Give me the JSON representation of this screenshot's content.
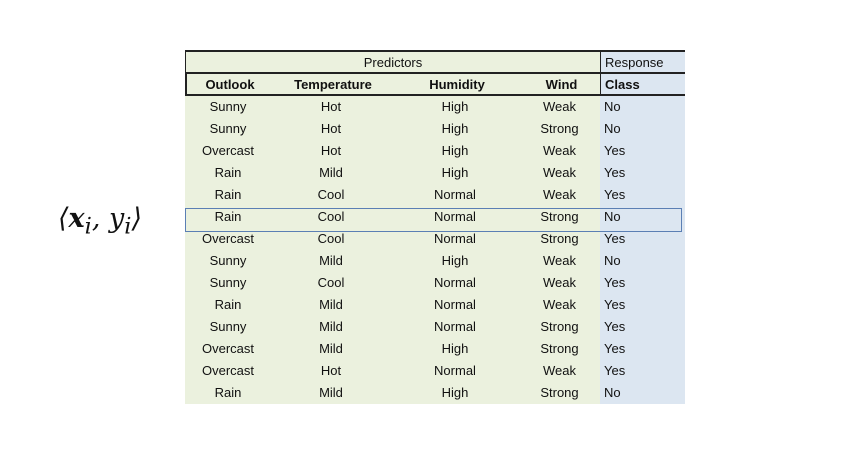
{
  "formula": {
    "open": "⟨",
    "x": "x",
    "x_sub": "i",
    "comma": ", ",
    "y": "y",
    "y_sub": "i",
    "close": "⟩"
  },
  "table": {
    "group_headers": {
      "predictors": "Predictors",
      "response": "Response"
    },
    "columns": [
      "Outlook",
      "Temperature",
      "Humidity",
      "Wind",
      "Class"
    ],
    "rows": [
      [
        "Sunny",
        "Hot",
        "High",
        "Weak",
        "No"
      ],
      [
        "Sunny",
        "Hot",
        "High",
        "Strong",
        "No"
      ],
      [
        "Overcast",
        "Hot",
        "High",
        "Weak",
        "Yes"
      ],
      [
        "Rain",
        "Mild",
        "High",
        "Weak",
        "Yes"
      ],
      [
        "Rain",
        "Cool",
        "Normal",
        "Weak",
        "Yes"
      ],
      [
        "Rain",
        "Cool",
        "Normal",
        "Strong",
        "No"
      ],
      [
        "Overcast",
        "Cool",
        "Normal",
        "Strong",
        "Yes"
      ],
      [
        "Sunny",
        "Mild",
        "High",
        "Weak",
        "No"
      ],
      [
        "Sunny",
        "Cool",
        "Normal",
        "Weak",
        "Yes"
      ],
      [
        "Rain",
        "Mild",
        "Normal",
        "Weak",
        "Yes"
      ],
      [
        "Sunny",
        "Mild",
        "Normal",
        "Strong",
        "Yes"
      ],
      [
        "Overcast",
        "Mild",
        "High",
        "Strong",
        "Yes"
      ],
      [
        "Overcast",
        "Hot",
        "Normal",
        "Weak",
        "Yes"
      ],
      [
        "Rain",
        "Mild",
        "High",
        "Strong",
        "No"
      ]
    ],
    "highlighted_row": 5,
    "colors": {
      "predictor_fill": "#ebf1de",
      "response_fill": "#dce6f1",
      "highlight_border": "#5b7fb4"
    }
  }
}
